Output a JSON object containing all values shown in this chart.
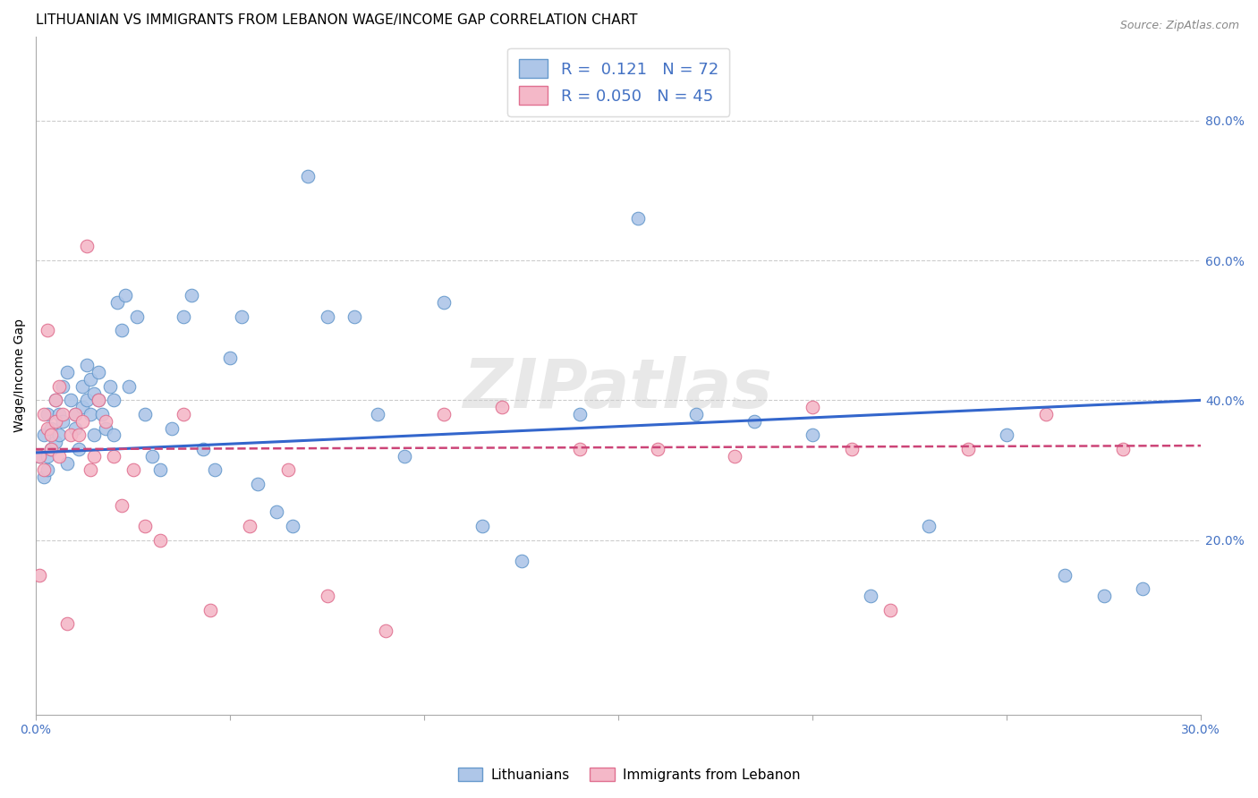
{
  "title": "LITHUANIAN VS IMMIGRANTS FROM LEBANON WAGE/INCOME GAP CORRELATION CHART",
  "source": "Source: ZipAtlas.com",
  "ylabel": "Wage/Income Gap",
  "xlabel": "",
  "xlim": [
    0.0,
    0.3
  ],
  "ylim": [
    -0.05,
    0.92
  ],
  "yticks": [
    0.2,
    0.4,
    0.6,
    0.8
  ],
  "ytick_labels": [
    "20.0%",
    "40.0%",
    "60.0%",
    "80.0%"
  ],
  "xticks": [
    0.0,
    0.05,
    0.1,
    0.15,
    0.2,
    0.25,
    0.3
  ],
  "bottom_xtick_labels": [
    "0.0%",
    "",
    "",
    "",
    "",
    "",
    "30.0%"
  ],
  "blue_color": "#aec6e8",
  "blue_edge_color": "#6699cc",
  "pink_color": "#f4b8c8",
  "pink_edge_color": "#e07090",
  "blue_line_color": "#3366cc",
  "pink_line_color": "#cc4477",
  "R_blue": 0.121,
  "N_blue": 72,
  "R_pink": 0.05,
  "N_pink": 45,
  "legend_label_blue": "Lithuanians",
  "legend_label_pink": "Immigrants from Lebanon",
  "watermark": "ZIPatlas",
  "axis_color": "#4472c4",
  "grid_color": "#cccccc",
  "blue_scatter_x": [
    0.001,
    0.002,
    0.002,
    0.003,
    0.003,
    0.003,
    0.004,
    0.004,
    0.005,
    0.005,
    0.006,
    0.006,
    0.007,
    0.007,
    0.008,
    0.008,
    0.009,
    0.01,
    0.01,
    0.011,
    0.012,
    0.012,
    0.013,
    0.013,
    0.014,
    0.014,
    0.015,
    0.015,
    0.016,
    0.016,
    0.017,
    0.018,
    0.019,
    0.02,
    0.02,
    0.021,
    0.022,
    0.023,
    0.024,
    0.026,
    0.028,
    0.03,
    0.032,
    0.035,
    0.038,
    0.04,
    0.043,
    0.046,
    0.05,
    0.053,
    0.057,
    0.062,
    0.066,
    0.07,
    0.075,
    0.082,
    0.088,
    0.095,
    0.105,
    0.115,
    0.125,
    0.14,
    0.155,
    0.17,
    0.185,
    0.2,
    0.215,
    0.23,
    0.25,
    0.265,
    0.275,
    0.285
  ],
  "blue_scatter_y": [
    0.32,
    0.35,
    0.29,
    0.38,
    0.32,
    0.3,
    0.36,
    0.33,
    0.4,
    0.34,
    0.38,
    0.35,
    0.42,
    0.37,
    0.44,
    0.31,
    0.4,
    0.36,
    0.38,
    0.33,
    0.42,
    0.39,
    0.4,
    0.45,
    0.38,
    0.43,
    0.35,
    0.41,
    0.4,
    0.44,
    0.38,
    0.36,
    0.42,
    0.4,
    0.35,
    0.54,
    0.5,
    0.55,
    0.42,
    0.52,
    0.38,
    0.32,
    0.3,
    0.36,
    0.52,
    0.55,
    0.33,
    0.3,
    0.46,
    0.52,
    0.28,
    0.24,
    0.22,
    0.72,
    0.52,
    0.52,
    0.38,
    0.32,
    0.54,
    0.22,
    0.17,
    0.38,
    0.66,
    0.38,
    0.37,
    0.35,
    0.12,
    0.22,
    0.35,
    0.15,
    0.12,
    0.13
  ],
  "pink_scatter_x": [
    0.001,
    0.001,
    0.002,
    0.002,
    0.003,
    0.003,
    0.004,
    0.004,
    0.005,
    0.005,
    0.006,
    0.006,
    0.007,
    0.008,
    0.009,
    0.01,
    0.011,
    0.012,
    0.013,
    0.014,
    0.015,
    0.016,
    0.018,
    0.02,
    0.022,
    0.025,
    0.028,
    0.032,
    0.038,
    0.045,
    0.055,
    0.065,
    0.075,
    0.09,
    0.105,
    0.12,
    0.14,
    0.16,
    0.18,
    0.2,
    0.21,
    0.22,
    0.24,
    0.26,
    0.28
  ],
  "pink_scatter_y": [
    0.32,
    0.15,
    0.38,
    0.3,
    0.5,
    0.36,
    0.35,
    0.33,
    0.4,
    0.37,
    0.32,
    0.42,
    0.38,
    0.08,
    0.35,
    0.38,
    0.35,
    0.37,
    0.62,
    0.3,
    0.32,
    0.4,
    0.37,
    0.32,
    0.25,
    0.3,
    0.22,
    0.2,
    0.38,
    0.1,
    0.22,
    0.3,
    0.12,
    0.07,
    0.38,
    0.39,
    0.33,
    0.33,
    0.32,
    0.39,
    0.33,
    0.1,
    0.33,
    0.38,
    0.33
  ],
  "title_fontsize": 11,
  "axis_label_fontsize": 10,
  "tick_fontsize": 10,
  "legend_fontsize": 12
}
